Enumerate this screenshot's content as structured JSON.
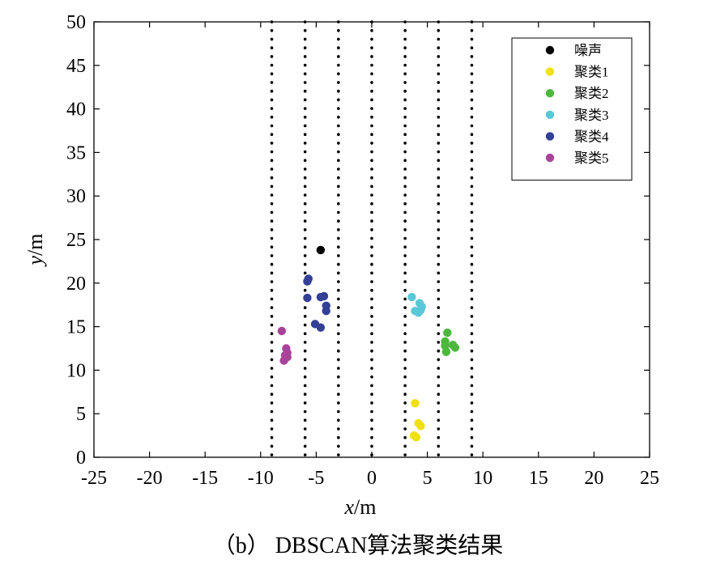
{
  "chart_data": {
    "type": "scatter",
    "xlabel": {
      "var": "x",
      "unit": "/m"
    },
    "ylabel": {
      "var": "y",
      "unit": "/m"
    },
    "xlim": [
      -25,
      25
    ],
    "ylim": [
      0,
      50
    ],
    "xticks": [
      -25,
      -20,
      -15,
      -10,
      -5,
      0,
      5,
      10,
      15,
      20,
      25
    ],
    "yticks": [
      0,
      5,
      10,
      15,
      20,
      25,
      30,
      35,
      40,
      45,
      50
    ],
    "grid": false,
    "legend_position": "top-right",
    "vertical_dotted_lines_x": [
      -9,
      -6,
      -3,
      0,
      3,
      6,
      9
    ],
    "series": [
      {
        "name": "噪声",
        "color": "#000000",
        "points": [
          [
            -4.6,
            23.8
          ]
        ]
      },
      {
        "name": "聚类1",
        "color": "#f0e010",
        "points": [
          [
            3.9,
            6.2
          ],
          [
            4.2,
            3.9
          ],
          [
            4.4,
            3.6
          ],
          [
            3.8,
            2.5
          ],
          [
            4.0,
            2.3
          ]
        ]
      },
      {
        "name": "聚类2",
        "color": "#4cb83c",
        "points": [
          [
            6.8,
            14.3
          ],
          [
            6.6,
            13.3
          ],
          [
            6.6,
            12.8
          ],
          [
            7.3,
            12.9
          ],
          [
            7.5,
            12.6
          ],
          [
            6.7,
            12.1
          ]
        ]
      },
      {
        "name": "聚类3",
        "color": "#5bc8d8",
        "points": [
          [
            3.6,
            18.4
          ],
          [
            4.3,
            17.7
          ],
          [
            4.5,
            17.3
          ],
          [
            4.4,
            16.9
          ],
          [
            3.9,
            16.8
          ],
          [
            4.2,
            16.6
          ]
        ]
      },
      {
        "name": "聚类4",
        "color": "#343f96",
        "points": [
          [
            -5.7,
            20.5
          ],
          [
            -5.8,
            20.2
          ],
          [
            -4.3,
            18.5
          ],
          [
            -4.6,
            18.4
          ],
          [
            -5.8,
            18.3
          ],
          [
            -4.1,
            17.4
          ],
          [
            -4.1,
            16.8
          ],
          [
            -5.1,
            15.3
          ],
          [
            -4.6,
            14.9
          ]
        ]
      },
      {
        "name": "聚类5",
        "color": "#a8439a",
        "points": [
          [
            -8.1,
            14.5
          ],
          [
            -7.7,
            12.5
          ],
          [
            -7.6,
            12.0
          ],
          [
            -7.8,
            11.7
          ],
          [
            -7.6,
            11.5
          ],
          [
            -7.9,
            11.1
          ]
        ]
      }
    ]
  },
  "caption": "（b） DBSCAN算法聚类结果"
}
